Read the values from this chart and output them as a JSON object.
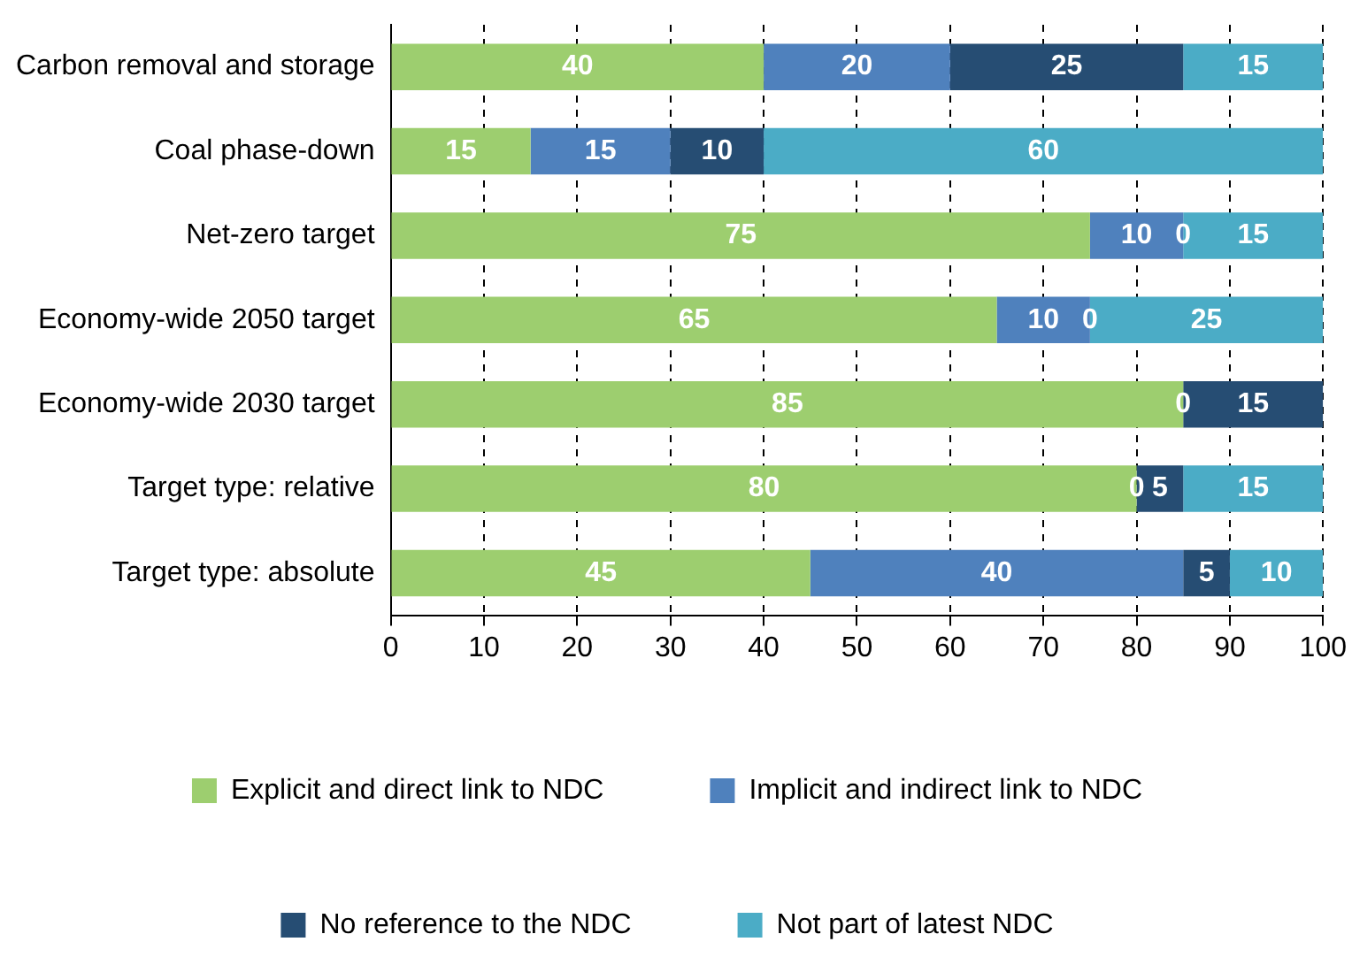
{
  "chart_data": {
    "type": "bar",
    "orientation": "horizontal",
    "stacked": true,
    "categories": [
      "Carbon removal and storage",
      "Coal phase-down",
      "Net-zero target",
      "Economy-wide 2050 target",
      "Economy-wide 2030 target",
      "Target type: relative",
      "Target type: absolute"
    ],
    "series": [
      {
        "name": "Explicit and direct link to NDC",
        "color": "#9dce6f",
        "values": [
          40,
          15,
          75,
          65,
          85,
          80,
          45
        ],
        "value_labels": [
          "40",
          "15",
          "75",
          "65",
          "85",
          "80",
          "45"
        ]
      },
      {
        "name": "Implicit and indirect link to NDC",
        "color": "#4f81bd",
        "values": [
          20,
          15,
          10,
          10,
          0,
          0,
          40
        ],
        "value_labels": [
          "20",
          "15",
          "10",
          "10",
          null,
          null,
          "40"
        ]
      },
      {
        "name": "No reference to the NDC",
        "color": "#264d73",
        "values": [
          25,
          10,
          0,
          0,
          15,
          5,
          5
        ],
        "value_labels": [
          "25",
          "10",
          null,
          null,
          "15",
          "5",
          "5"
        ]
      },
      {
        "name": "Not part of latest NDC",
        "color": "#4bacc6",
        "values": [
          15,
          60,
          15,
          25,
          0,
          15,
          10
        ],
        "value_labels": [
          "15",
          "60",
          "15",
          "25",
          null,
          "15",
          "10"
        ]
      }
    ],
    "xlim": [
      0,
      100
    ],
    "xticks": [
      0,
      10,
      20,
      30,
      40,
      50,
      60,
      70,
      80,
      90,
      100
    ],
    "annotations": [
      {
        "text": "0",
        "x": 85,
        "y": "Net-zero target"
      },
      {
        "text": "0",
        "x": 75,
        "y": "Economy-wide 2050 target"
      },
      {
        "text": "0",
        "x": 85,
        "y": "Economy-wide 2030 target"
      },
      {
        "text": "0",
        "x": 80,
        "y": "Target type: relative"
      }
    ],
    "grid": "x",
    "legend": "bottom"
  }
}
